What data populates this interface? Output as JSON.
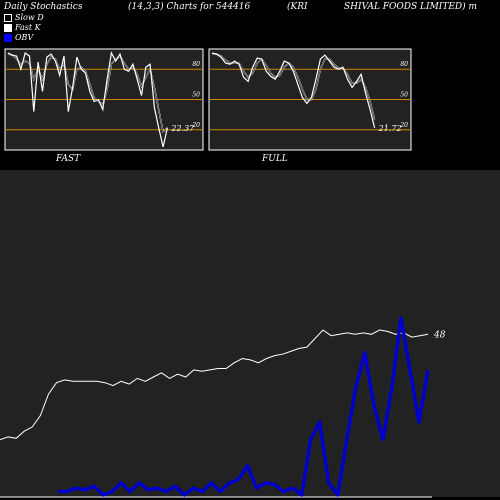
{
  "header": {
    "left": "Daily Stochastics",
    "center": "(14,3,3) Charts for 544416",
    "right_a": "(KRI",
    "right_b": "SHIVAL  FOODS LIMITED) m"
  },
  "legend": [
    {
      "label": "Slow  D",
      "color": "#000000"
    },
    {
      "label": "Fast K",
      "color": "#ffffff"
    },
    {
      "label": "OBV",
      "color": "#0000ff"
    }
  ],
  "colors": {
    "background": "#000000",
    "panel": "#222222",
    "level_line": "#cc8400",
    "k_line": "#ffffff",
    "obv_line": "#0000cc"
  },
  "chart_data": [
    {
      "type": "line",
      "name": "FAST",
      "label": "FAST",
      "ylim": [
        0,
        100
      ],
      "levels": [
        20,
        50,
        80
      ],
      "level_labels": [
        "20",
        "50",
        "80"
      ],
      "last_value_label": "22.37",
      "series": [
        {
          "name": "Fast K",
          "values": [
            96,
            94,
            93,
            80,
            96,
            93,
            38,
            87,
            58,
            92,
            95,
            88,
            74,
            93,
            38,
            62,
            92,
            80,
            76,
            58,
            48,
            50,
            40,
            70,
            96,
            88,
            95,
            80,
            78,
            85,
            70,
            54,
            82,
            85,
            42,
            22,
            3,
            22
          ]
        },
        {
          "name": "Slow D",
          "values": [
            95,
            94,
            90,
            85,
            88,
            86,
            70,
            80,
            70,
            85,
            92,
            90,
            80,
            85,
            65,
            60,
            80,
            82,
            78,
            65,
            52,
            48,
            45,
            60,
            85,
            90,
            93,
            86,
            80,
            82,
            75,
            63,
            72,
            80,
            62,
            40,
            18,
            22
          ]
        }
      ]
    },
    {
      "type": "line",
      "name": "FULL",
      "label": "FULL",
      "ylim": [
        0,
        100
      ],
      "levels": [
        20,
        50,
        80
      ],
      "level_labels": [
        "20",
        "50",
        "80"
      ],
      "last_value_label": "21.72",
      "series": [
        {
          "name": "K",
          "values": [
            96,
            95,
            92,
            86,
            85,
            88,
            85,
            72,
            68,
            82,
            91,
            90,
            78,
            73,
            70,
            78,
            88,
            86,
            78,
            65,
            52,
            46,
            52,
            70,
            90,
            94,
            88,
            82,
            80,
            82,
            70,
            62,
            68,
            75,
            56,
            40,
            22
          ]
        },
        {
          "name": "D",
          "values": [
            95,
            95,
            93,
            89,
            86,
            86,
            86,
            78,
            72,
            76,
            86,
            90,
            84,
            76,
            72,
            74,
            82,
            86,
            82,
            72,
            60,
            50,
            50,
            60,
            80,
            90,
            90,
            85,
            81,
            81,
            75,
            66,
            66,
            70,
            62,
            48,
            30
          ]
        }
      ]
    },
    {
      "type": "line",
      "name": "Price / OBV",
      "last_value_label": "48",
      "series": [
        {
          "name": "Price",
          "values": [
            3,
            5,
            4,
            9,
            12,
            20,
            35,
            43,
            45,
            44,
            44,
            44,
            44,
            43,
            41,
            44,
            42,
            46,
            44,
            47,
            50,
            46,
            49,
            47,
            52,
            51,
            52,
            53,
            53,
            57,
            60,
            59,
            57,
            60,
            62,
            63,
            65,
            67,
            68,
            74,
            80,
            76,
            77,
            78,
            77,
            78,
            77,
            80,
            79,
            77,
            78,
            75,
            76,
            77
          ]
        },
        {
          "name": "OBV",
          "values": [
            -10,
            -10,
            -8,
            -9,
            -7,
            -12,
            -10,
            -5,
            -10,
            -5,
            -9,
            -8,
            -10,
            -7,
            -12,
            -8,
            -10,
            -5,
            -10,
            -5,
            -3,
            5,
            -8,
            -5,
            -6,
            -10,
            -8,
            -12,
            20,
            30,
            -5,
            -12,
            20,
            50,
            70,
            40,
            20,
            50,
            90,
            60,
            30,
            60
          ]
        }
      ]
    }
  ]
}
